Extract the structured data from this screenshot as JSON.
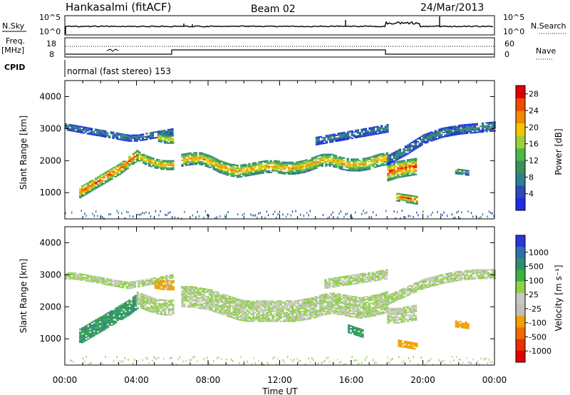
{
  "header": {
    "station": "Hankasalmi (fitACF)",
    "beam": "Beam 02",
    "date": "24/Mar/2013"
  },
  "strip_labels": {
    "nsky": "N.Sky",
    "nsky_hi": "10^5",
    "nsky_lo": "10^0",
    "nsearch": "N.Search",
    "nsearch_hi": "10^5",
    "nsearch_lo": "10^0",
    "freq_top": "Freq.",
    "freq_unit": "[MHz]",
    "freq_hi": "18",
    "freq_lo": "8",
    "nave": "Nave",
    "nave_hi": "60",
    "nave_lo": "0",
    "cpid": "CPID",
    "cpid_text": "normal (fast stereo) 153"
  },
  "colors": {
    "power_scale": [
      "#1d2be8",
      "#2a4ab5",
      "#2f7f8f",
      "#3d8f5a",
      "#4fb84a",
      "#9cd13c",
      "#f5c400",
      "#f08a00",
      "#f04a00",
      "#e00000"
    ],
    "velocity_scale": [
      "#2b35d8",
      "#2e6fa8",
      "#2f8f6c",
      "#3cb23f",
      "#8fd04a",
      "#c8c8c0",
      "#c0c0b8",
      "#f0a000",
      "#f06a00",
      "#e83000",
      "#e00000"
    ]
  },
  "chart_data": [
    {
      "type": "heatmap",
      "name": "power",
      "xlabel": "Time UT",
      "ylabel": "Slant Range [km]",
      "x_ticks": [
        "00:00",
        "04:00",
        "08:00",
        "12:00",
        "16:00",
        "20:00",
        "00:00"
      ],
      "x_range_hours": [
        0,
        24
      ],
      "ylim": [
        180,
        4500
      ],
      "y_ticks": [
        1000,
        2000,
        3000,
        4000
      ],
      "colorbar": {
        "label": "Power [dB]",
        "ticks": [
          4,
          8,
          12,
          16,
          20,
          24,
          28
        ],
        "range": [
          0,
          30
        ]
      },
      "echo_bands": [
        {
          "start_h": 0.0,
          "end_h": 6.0,
          "center_km": [
            3050,
            3000,
            2950,
            2900,
            2850,
            2800,
            2750,
            2700,
            2700,
            2750,
            2800,
            2850,
            2900
          ],
          "width_km": 220,
          "power_db": 8
        },
        {
          "start_h": 0.8,
          "end_h": 4.0,
          "center_km": [
            1000,
            1150,
            1300,
            1450,
            1600,
            1750,
            1950,
            2150
          ],
          "width_km": 350,
          "power_db": 26
        },
        {
          "start_h": 4.0,
          "end_h": 6.0,
          "center_km": [
            2150,
            2000,
            1900,
            1850,
            1850
          ],
          "width_km": 300,
          "power_db": 22
        },
        {
          "start_h": 5.2,
          "end_h": 6.0,
          "center_km": [
            2700,
            2650,
            2650
          ],
          "width_km": 250,
          "power_db": 20
        },
        {
          "start_h": 6.5,
          "end_h": 18.0,
          "center_km": [
            2000,
            2050,
            2050,
            1950,
            1800,
            1700,
            1650,
            1700,
            1750,
            1800,
            1800,
            1750,
            1750,
            1800,
            1900,
            2000,
            2000,
            1900,
            1850,
            1850,
            1900,
            2000,
            2050
          ],
          "width_km": 380,
          "power_db": 22
        },
        {
          "start_h": 14.0,
          "end_h": 18.0,
          "center_km": [
            2600,
            2700,
            2800,
            2900,
            3000
          ],
          "width_km": 250,
          "power_db": 8
        },
        {
          "start_h": 18.0,
          "end_h": 19.6,
          "center_km": [
            1600,
            1700,
            1750,
            1800
          ],
          "width_km": 500,
          "power_db": 27
        },
        {
          "start_h": 18.5,
          "end_h": 19.6,
          "center_km": [
            850,
            800,
            750
          ],
          "width_km": 250,
          "power_db": 26
        },
        {
          "start_h": 18.0,
          "end_h": 24.0,
          "center_km": [
            2000,
            2300,
            2650,
            2850,
            2950,
            3000,
            3050
          ],
          "width_km": 280,
          "power_db": 9
        },
        {
          "start_h": 21.8,
          "end_h": 22.5,
          "center_km": [
            1650,
            1600
          ],
          "width_km": 150,
          "power_db": 14
        }
      ]
    },
    {
      "type": "heatmap",
      "name": "velocity",
      "xlabel": "Time UT",
      "ylabel": "Slant Range [km]",
      "x_ticks": [
        "00:00",
        "04:00",
        "08:00",
        "12:00",
        "16:00",
        "20:00",
        "00:00"
      ],
      "x_range_hours": [
        0,
        24
      ],
      "ylim": [
        180,
        4500
      ],
      "y_ticks": [
        1000,
        2000,
        3000,
        4000
      ],
      "colorbar": {
        "label": "Velocity [m s⁻¹]",
        "ticks": [
          1000,
          500,
          100,
          25,
          -25,
          -100,
          -500,
          -1000
        ]
      },
      "echo_bands": [
        {
          "start_h": 0.0,
          "end_h": 6.0,
          "center_km": [
            2950,
            2950,
            2900,
            2850,
            2800,
            2750,
            2700,
            2650,
            2700,
            2750,
            2800,
            2850,
            2900
          ],
          "width_km": 200,
          "velocity": 0
        },
        {
          "start_h": 0.8,
          "end_h": 4.0,
          "center_km": [
            1050,
            1200,
            1350,
            1500,
            1650,
            1800,
            1950,
            2150
          ],
          "width_km": 450,
          "velocity": 150
        },
        {
          "start_h": 4.0,
          "end_h": 6.0,
          "center_km": [
            2200,
            2100,
            2000,
            1950,
            1950
          ],
          "width_km": 450,
          "velocity": 0
        },
        {
          "start_h": 5.0,
          "end_h": 6.0,
          "center_km": [
            2700,
            2650,
            2650
          ],
          "width_km": 280,
          "velocity": -150
        },
        {
          "start_h": 6.5,
          "end_h": 18.0,
          "center_km": [
            2300,
            2300,
            2250,
            2200,
            2100,
            2000,
            1900,
            1850,
            1850,
            1850,
            1850,
            1850,
            1850,
            1900,
            1950,
            2050,
            2100,
            2050,
            2000,
            1950,
            2000,
            2050,
            2150
          ],
          "width_km": 650,
          "velocity": 0
        },
        {
          "start_h": 14.5,
          "end_h": 18.0,
          "center_km": [
            2700,
            2800,
            2900,
            3000
          ],
          "width_km": 280,
          "velocity": 0
        },
        {
          "start_h": 18.0,
          "end_h": 24.0,
          "center_km": [
            2200,
            2450,
            2700,
            2850,
            2950,
            3000,
            3000
          ],
          "width_km": 280,
          "velocity": 0
        },
        {
          "start_h": 18.0,
          "end_h": 19.6,
          "center_km": [
            1700,
            1700,
            1750,
            1800
          ],
          "width_km": 450,
          "velocity": 0
        },
        {
          "start_h": 18.6,
          "end_h": 19.6,
          "center_km": [
            850,
            800,
            750
          ],
          "width_km": 200,
          "velocity": -300
        },
        {
          "start_h": 21.8,
          "end_h": 22.5,
          "center_km": [
            1450,
            1400
          ],
          "width_km": 200,
          "velocity": -400
        },
        {
          "start_h": 15.8,
          "end_h": 16.6,
          "center_km": [
            1300,
            1150
          ],
          "width_km": 250,
          "velocity": 150
        }
      ]
    }
  ],
  "axis_labels": {
    "xlabel": "Time UT",
    "ylabel": "Slant Range [km]",
    "power_cb": "Power [dB]",
    "velocity_cb": "Velocity [m s⁻¹]"
  }
}
